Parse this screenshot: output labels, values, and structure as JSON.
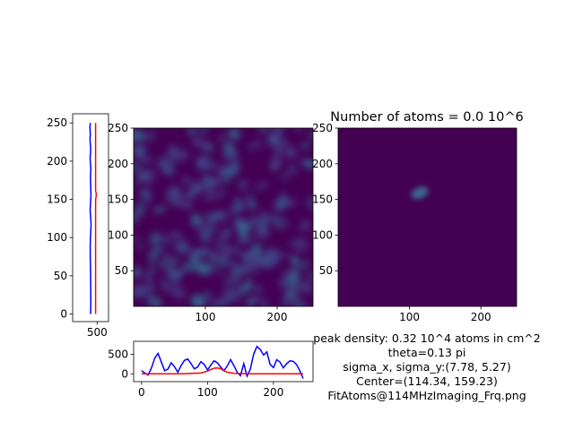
{
  "chart_data": [
    {
      "id": "vertical-profile",
      "type": "line",
      "series": [
        {
          "color": "#0000ff",
          "x": [
            82,
            62,
            70,
            86,
            68,
            74,
            95,
            108,
            92,
            75,
            80,
            100,
            115,
            108,
            95,
            96,
            104,
            112,
            117,
            124,
            113,
            97,
            82,
            75,
            92,
            110,
            122,
            126,
            116,
            103,
            92,
            85,
            78,
            80,
            86,
            92,
            98,
            104,
            110,
            113,
            114,
            113,
            110,
            106,
            103,
            101,
            102
          ],
          "y": [
            250,
            245,
            240,
            235,
            230,
            225,
            220,
            215,
            210,
            205,
            200,
            195,
            190,
            185,
            180,
            175,
            170,
            165,
            160,
            155,
            150,
            145,
            140,
            135,
            130,
            125,
            120,
            115,
            110,
            105,
            100,
            95,
            90,
            80,
            70,
            60,
            50,
            40,
            30,
            22,
            15,
            12,
            10,
            6,
            4,
            2,
            0
          ]
        },
        {
          "color": "#ff0000",
          "x": [
            410,
            410,
            410,
            410,
            410,
            410,
            410,
            410,
            410,
            410,
            410,
            410,
            420,
            450,
            440,
            420,
            410,
            410,
            410,
            410,
            410
          ],
          "y": [
            250,
            235,
            220,
            205,
            190,
            178,
            172,
            170,
            168,
            166,
            164,
            162,
            160,
            157,
            154,
            151,
            148,
            140,
            100,
            50,
            0
          ]
        }
      ],
      "xticks": [
        "500"
      ],
      "yticks": [
        "0",
        "50",
        "100",
        "150",
        "200",
        "250"
      ],
      "xlim": [
        -1000,
        1200
      ],
      "ylim": [
        -10,
        262
      ]
    },
    {
      "id": "horizontal-profile",
      "type": "line",
      "series": [
        {
          "color": "#0000ff",
          "x": [
            0,
            5,
            10,
            15,
            20,
            25,
            30,
            35,
            40,
            45,
            50,
            55,
            60,
            65,
            70,
            75,
            80,
            85,
            90,
            95,
            100,
            105,
            110,
            115,
            120,
            125,
            130,
            135,
            140,
            145,
            150,
            155,
            160,
            165,
            170,
            175,
            180,
            185,
            190,
            195,
            200,
            205,
            210,
            215,
            220,
            225,
            230,
            235,
            240,
            245
          ],
          "y": [
            80,
            20,
            -30,
            150,
            400,
            520,
            300,
            80,
            120,
            280,
            180,
            40,
            210,
            340,
            380,
            260,
            130,
            170,
            310,
            240,
            100,
            220,
            330,
            280,
            170,
            80,
            200,
            360,
            210,
            40,
            -50,
            260,
            -60,
            120,
            500,
            700,
            620,
            480,
            560,
            240,
            160,
            360,
            300,
            150,
            260,
            330,
            320,
            240,
            80,
            -120
          ]
        },
        {
          "color": "#ff0000",
          "x": [
            0,
            30,
            60,
            90,
            100,
            105,
            110,
            115,
            120,
            125,
            130,
            140,
            160,
            200,
            245
          ],
          "y": [
            0,
            0,
            0,
            20,
            70,
            110,
            140,
            150,
            130,
            80,
            40,
            10,
            0,
            0,
            0
          ]
        }
      ],
      "xticks": [
        "0",
        "100",
        "200"
      ],
      "yticks": [
        "0",
        "500"
      ],
      "xlim": [
        -12,
        260
      ],
      "ylim": [
        -200,
        830
      ]
    },
    {
      "id": "image-raw",
      "type": "heatmap",
      "xticks": [
        "100",
        "200"
      ],
      "yticks": [
        "50",
        "100",
        "150",
        "200",
        "250"
      ],
      "xlim": [
        0,
        250
      ],
      "ylim": [
        0,
        250
      ]
    },
    {
      "id": "image-fit",
      "type": "heatmap",
      "title": "Number of atoms = 0.0 10^6",
      "xticks": [
        "100",
        "200"
      ],
      "yticks": [
        "50",
        "100",
        "150",
        "200",
        "250"
      ],
      "xlim": [
        0,
        250
      ],
      "ylim": [
        0,
        250
      ],
      "peak": {
        "x": 114.34,
        "y": 159.23
      }
    }
  ],
  "fit_info": [
    "peak density: 0.32 10^4 atoms in cm^2",
    "theta=0.13 pi",
    "sigma_x, sigma_y:(7.78, 5.27)",
    "Center=(114.34, 159.23)",
    "FitAtoms@114MHzImaging_Frq.png"
  ],
  "colors": {
    "background": "#440154",
    "blob": "#3b528b",
    "curve": "#0000ff",
    "fit": "#ff0000"
  }
}
